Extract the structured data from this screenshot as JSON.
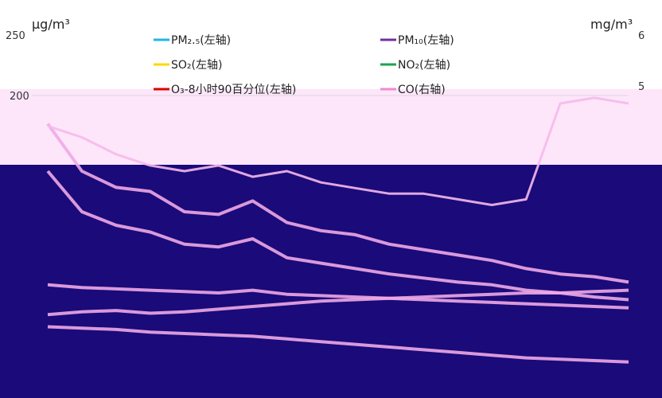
{
  "chart_data": {
    "type": "line",
    "left_unit": "μg/m³",
    "right_unit": "mg/m³",
    "left_ticks": [
      "250",
      "200"
    ],
    "right_ticks": [
      "6",
      "5"
    ],
    "left_axis_range": [
      0,
      250
    ],
    "right_axis_range": [
      0,
      6
    ],
    "legend_placement": "top-center, two columns",
    "grid": true,
    "legend": [
      {
        "name": "PM₂.₅(左轴)",
        "color": "#1fb6e6"
      },
      {
        "name": "PM₁₀(左轴)",
        "color": "#7030a0"
      },
      {
        "name": "SO₂(左轴)",
        "color": "#ffd700"
      },
      {
        "name": "NO₂(左轴)",
        "color": "#1aa64a"
      },
      {
        "name": "O₃-8小时90百分位(左轴)",
        "color": "#e00000"
      },
      {
        "name": "CO(右轴)",
        "color": "#f08ad0"
      }
    ],
    "series": [
      {
        "name": "PM₁₀(左轴)",
        "axis": "left",
        "values": [
          185,
          150,
          138,
          135,
          120,
          118,
          128,
          112,
          106,
          103,
          96,
          92,
          88,
          84,
          78,
          74,
          72,
          68
        ]
      },
      {
        "name": "PM₂.₅(左轴)",
        "axis": "left",
        "values": [
          150,
          120,
          110,
          105,
          96,
          94,
          100,
          86,
          82,
          78,
          74,
          71,
          68,
          66,
          62,
          60,
          57,
          55
        ]
      },
      {
        "name": "NO₂(左轴)",
        "axis": "left",
        "values": [
          66,
          64,
          63,
          62,
          61,
          60,
          62,
          59,
          58,
          57,
          56,
          55,
          54,
          53,
          52,
          51,
          50,
          49
        ]
      },
      {
        "name": "O₃-8小时90百分位(左轴)",
        "axis": "left",
        "values": [
          44,
          46,
          47,
          45,
          46,
          48,
          50,
          52,
          54,
          55,
          56,
          57,
          58,
          59,
          60,
          60,
          61,
          62
        ]
      },
      {
        "name": "SO₂(左轴)",
        "axis": "left",
        "values": [
          35,
          34,
          33,
          31,
          30,
          29,
          28,
          26,
          24,
          22,
          20,
          18,
          16,
          14,
          12,
          11,
          10,
          9
        ]
      },
      {
        "name": "CO(右轴)",
        "axis": "right",
        "values": [
          4.4,
          4.2,
          3.9,
          3.7,
          3.6,
          3.7,
          3.5,
          3.6,
          3.4,
          3.3,
          3.2,
          3.2,
          3.1,
          3.0,
          3.1,
          4.8,
          4.9,
          4.8
        ]
      }
    ]
  }
}
